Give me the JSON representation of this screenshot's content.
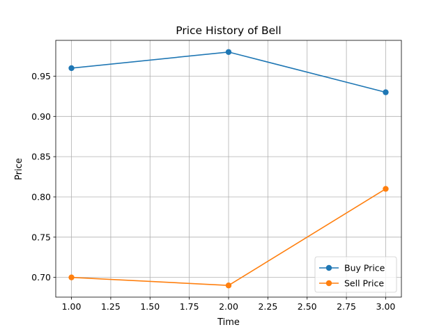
{
  "chart_data": {
    "type": "line",
    "title": "Price History of Bell",
    "xlabel": "Time",
    "ylabel": "Price",
    "x": [
      1.0,
      2.0,
      3.0
    ],
    "xlim": [
      0.9,
      3.1
    ],
    "ylim": [
      0.6755,
      0.9945
    ],
    "xticks": [
      1.0,
      1.25,
      1.5,
      1.75,
      2.0,
      2.25,
      2.5,
      2.75,
      3.0
    ],
    "xtick_labels": [
      "1.00",
      "1.25",
      "1.50",
      "1.75",
      "2.00",
      "2.25",
      "2.50",
      "2.75",
      "3.00"
    ],
    "yticks": [
      0.7,
      0.75,
      0.8,
      0.85,
      0.9,
      0.95
    ],
    "ytick_labels": [
      "0.70",
      "0.75",
      "0.80",
      "0.85",
      "0.90",
      "0.95"
    ],
    "grid": true,
    "legend_position": "lower-right",
    "series": [
      {
        "name": "Buy Price",
        "color": "#1f77b4",
        "marker": "circle",
        "values": [
          0.96,
          0.98,
          0.93
        ]
      },
      {
        "name": "Sell Price",
        "color": "#ff7f0e",
        "marker": "circle",
        "values": [
          0.7,
          0.69,
          0.81
        ]
      }
    ]
  }
}
